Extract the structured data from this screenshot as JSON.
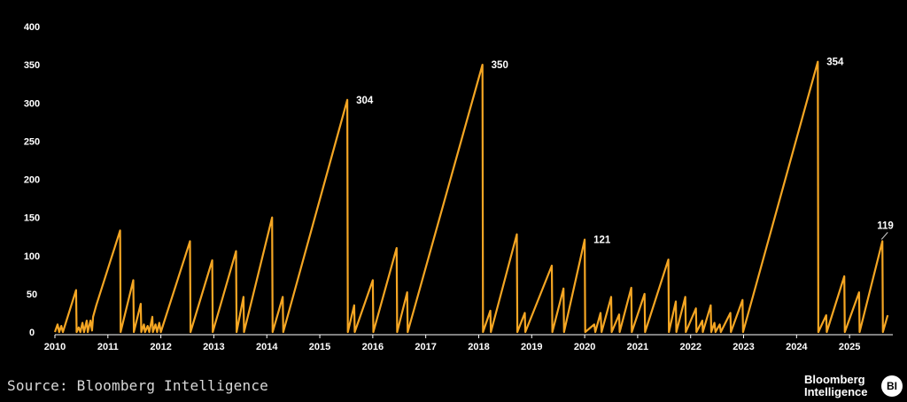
{
  "colors": {
    "background": "#000000",
    "line": "#f5a623",
    "text": "#ffffff",
    "source_text": "#d9d9d9"
  },
  "source": "Source: Bloomberg Intelligence",
  "logo": {
    "line1": "Bloomberg",
    "line2": "Intelligence",
    "badge": "BI"
  },
  "chart_data": {
    "type": "line",
    "title": "",
    "xlabel": "",
    "ylabel": "",
    "ylim": [
      0,
      400
    ],
    "xlim": [
      2010,
      2025.75
    ],
    "y_ticks": [
      0,
      50,
      100,
      150,
      200,
      250,
      300,
      350,
      400
    ],
    "x_ticks": [
      2010,
      2011,
      2012,
      2013,
      2014,
      2015,
      2016,
      2017,
      2018,
      2019,
      2020,
      2021,
      2022,
      2023,
      2024,
      2025
    ],
    "grid": false,
    "legend": "none",
    "series": [
      {
        "values": [
          [
            2010.0,
            0
          ],
          [
            2010.05,
            10
          ],
          [
            2010.08,
            0
          ],
          [
            2010.12,
            8
          ],
          [
            2010.15,
            0
          ],
          [
            2010.4,
            55
          ],
          [
            2010.41,
            0
          ],
          [
            2010.45,
            6
          ],
          [
            2010.48,
            0
          ],
          [
            2010.52,
            12
          ],
          [
            2010.55,
            0
          ],
          [
            2010.6,
            15
          ],
          [
            2010.62,
            0
          ],
          [
            2010.67,
            15
          ],
          [
            2010.7,
            2
          ],
          [
            2010.72,
            20
          ],
          [
            2010.78,
            35
          ],
          [
            2011.23,
            133
          ],
          [
            2011.24,
            0
          ],
          [
            2011.48,
            68
          ],
          [
            2011.49,
            0
          ],
          [
            2011.62,
            37
          ],
          [
            2011.63,
            0
          ],
          [
            2011.68,
            10
          ],
          [
            2011.7,
            0
          ],
          [
            2011.75,
            8
          ],
          [
            2011.78,
            0
          ],
          [
            2011.84,
            20
          ],
          [
            2011.85,
            0
          ],
          [
            2011.9,
            10
          ],
          [
            2011.93,
            0
          ],
          [
            2011.97,
            12
          ],
          [
            2012.0,
            0
          ],
          [
            2012.55,
            119
          ],
          [
            2012.56,
            0
          ],
          [
            2012.97,
            94
          ],
          [
            2012.98,
            0
          ],
          [
            2013.42,
            106
          ],
          [
            2013.43,
            0
          ],
          [
            2013.56,
            46
          ],
          [
            2013.57,
            0
          ],
          [
            2014.1,
            150
          ],
          [
            2014.11,
            0
          ],
          [
            2014.3,
            46
          ],
          [
            2014.31,
            0
          ],
          [
            2015.52,
            304
          ],
          [
            2015.53,
            0
          ],
          [
            2015.65,
            35
          ],
          [
            2015.66,
            0
          ],
          [
            2016.0,
            68
          ],
          [
            2016.01,
            0
          ],
          [
            2016.45,
            110
          ],
          [
            2016.46,
            0
          ],
          [
            2016.65,
            52
          ],
          [
            2016.66,
            0
          ],
          [
            2018.07,
            350
          ],
          [
            2018.08,
            0
          ],
          [
            2018.22,
            28
          ],
          [
            2018.23,
            0
          ],
          [
            2018.72,
            128
          ],
          [
            2018.73,
            0
          ],
          [
            2018.87,
            25
          ],
          [
            2018.88,
            0
          ],
          [
            2019.38,
            87
          ],
          [
            2019.39,
            0
          ],
          [
            2019.6,
            57
          ],
          [
            2019.61,
            0
          ],
          [
            2020.0,
            121
          ],
          [
            2020.01,
            0
          ],
          [
            2020.18,
            10
          ],
          [
            2020.2,
            0
          ],
          [
            2020.3,
            25
          ],
          [
            2020.32,
            0
          ],
          [
            2020.5,
            46
          ],
          [
            2020.51,
            0
          ],
          [
            2020.65,
            23
          ],
          [
            2020.66,
            0
          ],
          [
            2020.88,
            58
          ],
          [
            2020.89,
            0
          ],
          [
            2021.13,
            50
          ],
          [
            2021.14,
            0
          ],
          [
            2021.58,
            95
          ],
          [
            2021.59,
            0
          ],
          [
            2021.72,
            40
          ],
          [
            2021.73,
            0
          ],
          [
            2021.9,
            46
          ],
          [
            2021.91,
            0
          ],
          [
            2022.1,
            31
          ],
          [
            2022.11,
            0
          ],
          [
            2022.22,
            15
          ],
          [
            2022.23,
            0
          ],
          [
            2022.38,
            35
          ],
          [
            2022.39,
            0
          ],
          [
            2022.45,
            12
          ],
          [
            2022.47,
            0
          ],
          [
            2022.55,
            10
          ],
          [
            2022.57,
            0
          ],
          [
            2022.75,
            25
          ],
          [
            2022.76,
            0
          ],
          [
            2022.98,
            42
          ],
          [
            2022.99,
            0
          ],
          [
            2024.4,
            354
          ],
          [
            2024.41,
            0
          ],
          [
            2024.56,
            22
          ],
          [
            2024.57,
            0
          ],
          [
            2024.9,
            73
          ],
          [
            2024.91,
            0
          ],
          [
            2025.18,
            52
          ],
          [
            2025.19,
            0
          ],
          [
            2025.62,
            119
          ],
          [
            2025.63,
            0
          ],
          [
            2025.72,
            22
          ]
        ]
      }
    ],
    "annotations": [
      {
        "x": 2015.52,
        "y": 304,
        "text": "304"
      },
      {
        "x": 2018.07,
        "y": 350,
        "text": "350"
      },
      {
        "x": 2020.0,
        "y": 121,
        "text": "121"
      },
      {
        "x": 2024.4,
        "y": 354,
        "text": "354"
      },
      {
        "x": 2025.62,
        "y": 119,
        "text": "119"
      }
    ]
  }
}
